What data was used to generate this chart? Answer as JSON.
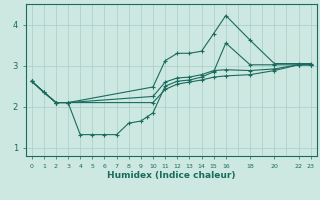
{
  "xlabel": "Humidex (Indice chaleur)",
  "bg_color": "#cce8e0",
  "grid_color": "#aacccc",
  "line_color": "#1a6b5e",
  "xlim": [
    -0.5,
    23.5
  ],
  "ylim": [
    0.8,
    4.5
  ],
  "xticks": [
    0,
    1,
    2,
    3,
    4,
    5,
    6,
    7,
    8,
    9,
    10,
    11,
    12,
    13,
    14,
    15,
    16,
    18,
    20,
    22,
    23
  ],
  "xtick_labels": [
    "0",
    "1",
    "2",
    "3",
    "4",
    "5",
    "6",
    "7",
    "8",
    "9",
    "10",
    "11",
    "12",
    "13",
    "14",
    "15",
    "16",
    "18",
    "20",
    "22",
    "23"
  ],
  "yticks": [
    1,
    2,
    3,
    4
  ],
  "lines": [
    {
      "x": [
        0,
        1,
        2,
        3,
        4,
        5,
        6,
        7,
        8,
        9,
        9.5,
        10,
        11,
        12,
        13,
        14,
        15,
        16,
        18,
        20,
        22,
        23
      ],
      "y": [
        2.62,
        2.35,
        2.1,
        2.1,
        1.32,
        1.32,
        1.32,
        1.32,
        1.6,
        1.65,
        1.75,
        1.85,
        2.5,
        2.62,
        2.65,
        2.72,
        2.85,
        3.55,
        3.02,
        3.02,
        3.02,
        3.02
      ]
    },
    {
      "x": [
        0,
        1,
        2,
        3,
        10,
        11,
        12,
        13,
        14,
        15,
        16,
        18,
        20,
        22,
        23
      ],
      "y": [
        2.62,
        2.35,
        2.1,
        2.1,
        2.48,
        3.12,
        3.3,
        3.3,
        3.35,
        3.78,
        4.22,
        3.62,
        3.05,
        3.05,
        3.05
      ]
    },
    {
      "x": [
        0,
        2,
        3,
        10,
        11,
        12,
        13,
        14,
        15,
        16,
        18,
        20,
        22,
        23
      ],
      "y": [
        2.62,
        2.1,
        2.1,
        2.25,
        2.6,
        2.7,
        2.72,
        2.78,
        2.88,
        2.9,
        2.88,
        2.92,
        3.02,
        3.02
      ]
    },
    {
      "x": [
        0,
        2,
        3,
        10,
        11,
        12,
        13,
        14,
        15,
        16,
        18,
        20,
        22,
        23
      ],
      "y": [
        2.62,
        2.1,
        2.1,
        2.1,
        2.42,
        2.55,
        2.6,
        2.65,
        2.72,
        2.75,
        2.78,
        2.88,
        3.02,
        3.02
      ]
    }
  ],
  "marker": "+",
  "markersize": 3.5,
  "linewidth": 0.8
}
